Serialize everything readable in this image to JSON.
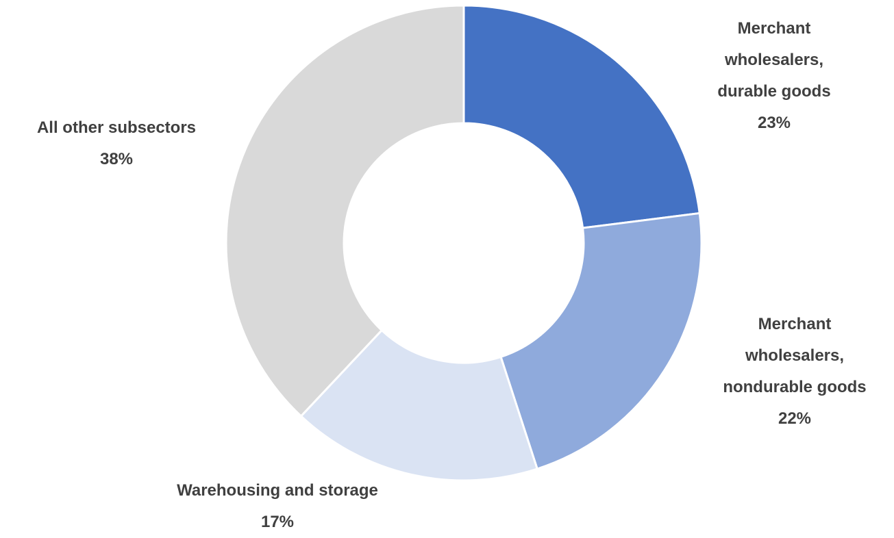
{
  "chart_data": {
    "type": "donut",
    "categories": [
      "Merchant wholesalers, durable goods",
      "Merchant wholesalers, nondurable goods",
      "Warehousing and storage",
      "All other subsectors"
    ],
    "values": [
      23,
      22,
      17,
      38
    ],
    "value_labels": [
      "23%",
      "22%",
      "17%",
      "38%"
    ],
    "colors": [
      "#4472c4",
      "#8faadc",
      "#dae3f3",
      "#d9d9d9"
    ]
  }
}
